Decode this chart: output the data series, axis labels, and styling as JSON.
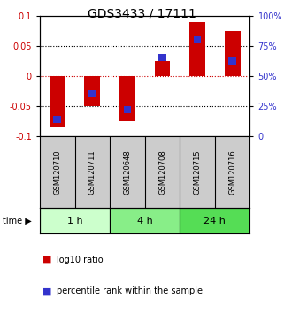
{
  "title": "GDS3433 / 17111",
  "samples": [
    "GSM120710",
    "GSM120711",
    "GSM120648",
    "GSM120708",
    "GSM120715",
    "GSM120716"
  ],
  "log10_ratio": [
    -0.085,
    -0.05,
    -0.075,
    0.025,
    0.09,
    0.075
  ],
  "percentile_rank": [
    14,
    35,
    22,
    65,
    80,
    62
  ],
  "time_groups": [
    {
      "label": "1 h",
      "start": 0,
      "end": 2,
      "color": "#ccffcc"
    },
    {
      "label": "4 h",
      "start": 2,
      "end": 4,
      "color": "#88ee88"
    },
    {
      "label": "24 h",
      "start": 4,
      "end": 6,
      "color": "#55dd55"
    }
  ],
  "ylim": [
    -0.1,
    0.1
  ],
  "right_ylim": [
    0,
    100
  ],
  "left_color": "#cc0000",
  "right_color": "#3333cc",
  "bar_color": "#cc0000",
  "dot_color": "#3333cc",
  "zero_line_color": "#cc0000",
  "bg_color": "#ffffff",
  "plot_bg": "#ffffff",
  "yticks_left": [
    -0.1,
    -0.05,
    0,
    0.05,
    0.1
  ],
  "yticks_right": [
    0,
    25,
    50,
    75,
    100
  ],
  "title_fontsize": 10,
  "tick_fontsize": 7,
  "sample_fontsize": 6,
  "time_fontsize": 8,
  "legend_fontsize": 7
}
